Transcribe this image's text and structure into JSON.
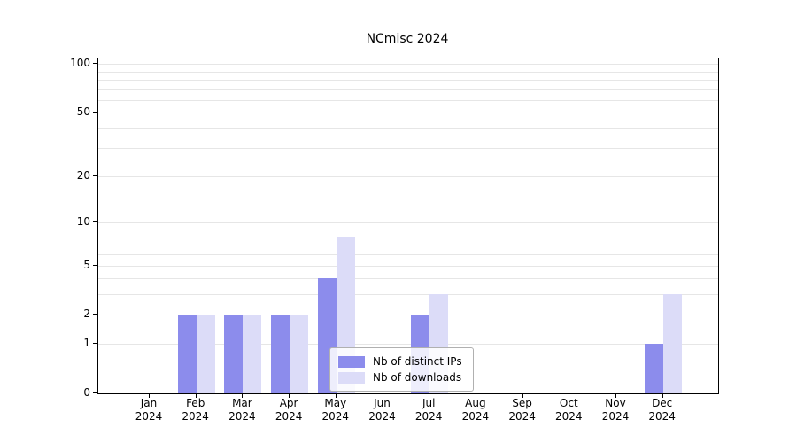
{
  "title": "NCmisc 2024",
  "chart_data": {
    "type": "bar",
    "title": "NCmisc 2024",
    "x_tick_months": [
      "Jan",
      "Feb",
      "Mar",
      "Apr",
      "May",
      "Jun",
      "Jul",
      "Aug",
      "Sep",
      "Oct",
      "Nov",
      "Dec"
    ],
    "x_tick_year": "2024",
    "categories": [
      "Jan 2024",
      "Feb 2024",
      "Mar 2024",
      "Apr 2024",
      "May 2024",
      "Jun 2024",
      "Jul 2024",
      "Aug 2024",
      "Sep 2024",
      "Oct 2024",
      "Nov 2024",
      "Dec 2024"
    ],
    "series": [
      {
        "name": "Nb of distinct IPs",
        "color": "#8c8cec",
        "values": [
          0,
          2,
          2,
          2,
          4,
          0,
          2,
          0,
          0,
          0,
          0,
          1
        ]
      },
      {
        "name": "Nb of downloads",
        "color": "#dcdcf8",
        "values": [
          0,
          2,
          2,
          2,
          8,
          0,
          3,
          0,
          0,
          0,
          0,
          3
        ]
      }
    ],
    "yscale": "log1p",
    "yticks": [
      0,
      1,
      2,
      5,
      10,
      20,
      50,
      100
    ],
    "ylim": [
      0,
      108
    ],
    "gridline_values": [
      1,
      2,
      3,
      4,
      5,
      6,
      7,
      8,
      9,
      10,
      20,
      30,
      40,
      50,
      60,
      70,
      80,
      90,
      100
    ],
    "grid": true,
    "legend_position": "lower center",
    "colors": {
      "grid": "#e6e6e6",
      "axis": "#000000",
      "text": "#000000",
      "legend_border": "#b0b0b0"
    }
  }
}
